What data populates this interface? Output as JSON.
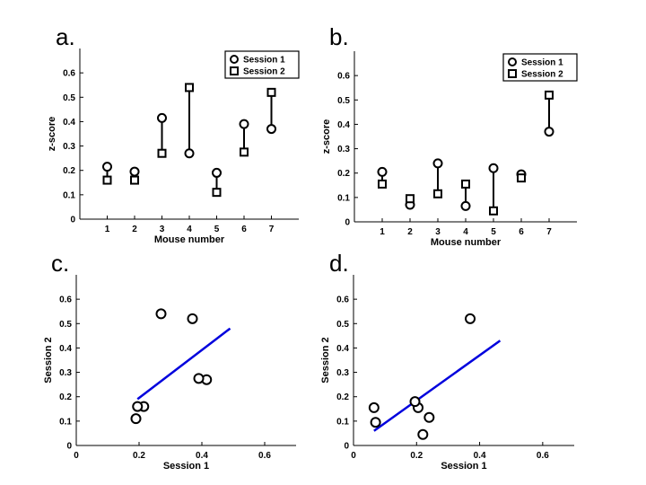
{
  "panel_labels": [
    "a.",
    "b.",
    "c.",
    "d."
  ],
  "chart_data": [
    {
      "type": "scatter",
      "panel": "a.",
      "xlabel": "Mouse number",
      "ylabel": "z-score",
      "categories": [
        "1",
        "2",
        "3",
        "4",
        "5",
        "6",
        "7"
      ],
      "xlim": [
        0,
        8
      ],
      "ylim": [
        0,
        0.7
      ],
      "yticks": [
        0,
        0.1,
        0.2,
        0.3,
        0.4,
        0.5,
        0.6
      ],
      "ytick_labels": [
        "0",
        "0.1",
        "0.2",
        "0.3",
        "0.4",
        "0.5",
        "0.6"
      ],
      "legend_position": "top-right",
      "series": [
        {
          "name": "Session 1",
          "marker": "circle",
          "values": [
            0.215,
            0.195,
            0.415,
            0.27,
            0.19,
            0.39,
            0.37
          ]
        },
        {
          "name": "Session 2",
          "marker": "square",
          "values": [
            0.16,
            0.16,
            0.27,
            0.54,
            0.11,
            0.275,
            0.52
          ]
        }
      ],
      "connector_color": "#000000",
      "grid": false
    },
    {
      "type": "scatter",
      "panel": "b.",
      "xlabel": "Mouse number",
      "ylabel": "z-score",
      "categories": [
        "1",
        "2",
        "3",
        "4",
        "5",
        "6",
        "7"
      ],
      "xlim": [
        0,
        8
      ],
      "ylim": [
        0,
        0.7
      ],
      "yticks": [
        0,
        0.1,
        0.2,
        0.3,
        0.4,
        0.5,
        0.6
      ],
      "ytick_labels": [
        "0",
        "0.1",
        "0.2",
        "0.3",
        "0.4",
        "0.5",
        "0.6"
      ],
      "legend_position": "top-right",
      "series": [
        {
          "name": "Session 1",
          "marker": "circle",
          "values": [
            0.205,
            0.07,
            0.24,
            0.065,
            0.22,
            0.195,
            0.37
          ]
        },
        {
          "name": "Session 2",
          "marker": "square",
          "values": [
            0.155,
            0.095,
            0.115,
            0.155,
            0.045,
            0.18,
            0.52
          ]
        }
      ],
      "connector_color": "#000000",
      "grid": false
    },
    {
      "type": "scatter",
      "panel": "c.",
      "xlabel": "Session 1",
      "ylabel": "Session 2",
      "xlim": [
        0,
        0.7
      ],
      "ylim": [
        0,
        0.7
      ],
      "xticks": [
        0,
        0.2,
        0.4,
        0.6
      ],
      "xtick_labels": [
        "0",
        "0.2",
        "0.4",
        "0.6"
      ],
      "yticks": [
        0,
        0.1,
        0.2,
        0.3,
        0.4,
        0.5,
        0.6
      ],
      "ytick_labels": [
        "0",
        "0.1",
        "0.2",
        "0.3",
        "0.4",
        "0.5",
        "0.6"
      ],
      "points": [
        {
          "x": 0.215,
          "y": 0.16
        },
        {
          "x": 0.195,
          "y": 0.16
        },
        {
          "x": 0.415,
          "y": 0.27
        },
        {
          "x": 0.27,
          "y": 0.54
        },
        {
          "x": 0.19,
          "y": 0.11
        },
        {
          "x": 0.39,
          "y": 0.275
        },
        {
          "x": 0.37,
          "y": 0.52
        }
      ],
      "fit_line": {
        "x": [
          0.195,
          0.49
        ],
        "y": [
          0.19,
          0.48
        ],
        "color": "#0000dd"
      },
      "grid": false
    },
    {
      "type": "scatter",
      "panel": "d.",
      "xlabel": "Session 1",
      "ylabel": "Session 2",
      "xlim": [
        0,
        0.7
      ],
      "ylim": [
        0,
        0.7
      ],
      "xticks": [
        0,
        0.2,
        0.4,
        0.6
      ],
      "xtick_labels": [
        "0",
        "0.2",
        "0.4",
        "0.6"
      ],
      "yticks": [
        0,
        0.1,
        0.2,
        0.3,
        0.4,
        0.5,
        0.6
      ],
      "ytick_labels": [
        "0",
        "0.1",
        "0.2",
        "0.3",
        "0.4",
        "0.5",
        "0.6"
      ],
      "points": [
        {
          "x": 0.065,
          "y": 0.155
        },
        {
          "x": 0.07,
          "y": 0.095
        },
        {
          "x": 0.24,
          "y": 0.115
        },
        {
          "x": 0.22,
          "y": 0.045
        },
        {
          "x": 0.205,
          "y": 0.155
        },
        {
          "x": 0.195,
          "y": 0.18
        },
        {
          "x": 0.37,
          "y": 0.52
        }
      ],
      "fit_line": {
        "x": [
          0.065,
          0.465
        ],
        "y": [
          0.06,
          0.43
        ],
        "color": "#0000dd"
      },
      "grid": false
    }
  ]
}
